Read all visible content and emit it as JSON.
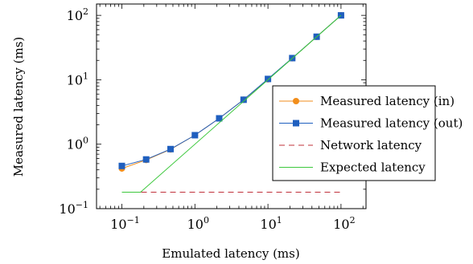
{
  "chart_data": {
    "type": "line",
    "x_scale": "log",
    "y_scale": "log",
    "xlabel": "Emulated latency (ms)",
    "ylabel": "Measured latency (ms)",
    "xlim": [
      0.045,
      220
    ],
    "ylim": [
      0.1,
      150
    ],
    "x_ticks": [
      {
        "value": 0.1,
        "base": "10",
        "exp": "−1"
      },
      {
        "value": 1,
        "base": "10",
        "exp": "0"
      },
      {
        "value": 10,
        "base": "10",
        "exp": "1"
      },
      {
        "value": 100,
        "base": "10",
        "exp": "2"
      }
    ],
    "y_ticks": [
      {
        "value": 0.1,
        "base": "10",
        "exp": "−1"
      },
      {
        "value": 1,
        "base": "10",
        "exp": "0"
      },
      {
        "value": 10,
        "base": "10",
        "exp": "1"
      },
      {
        "value": 100,
        "base": "10",
        "exp": "2"
      }
    ],
    "legend_position": "center-right",
    "series": [
      {
        "name": "Measured latency (in)",
        "color": "#f28e1c",
        "marker": "circle",
        "dash": "solid",
        "x": [
          0.1,
          0.215,
          0.464,
          1,
          2.15,
          4.64,
          10,
          21.5,
          46.4,
          100
        ],
        "y": [
          0.42,
          0.57,
          0.83,
          1.38,
          2.52,
          4.9,
          10.2,
          21.6,
          46.5,
          100
        ]
      },
      {
        "name": "Measured latency (out)",
        "color": "#1f5fbf",
        "marker": "square",
        "dash": "solid",
        "x": [
          0.1,
          0.215,
          0.464,
          1,
          2.15,
          4.64,
          10,
          21.5,
          46.4,
          100
        ],
        "y": [
          0.46,
          0.58,
          0.84,
          1.38,
          2.52,
          4.9,
          10.3,
          21.7,
          46.6,
          100
        ]
      },
      {
        "name": "Network latency",
        "color": "#c0303a",
        "marker": "none",
        "dash": "dashed",
        "x": [
          0.1,
          100
        ],
        "y": [
          0.18,
          0.18
        ]
      },
      {
        "name": "Expected latency",
        "color": "#3cc83c",
        "marker": "none",
        "dash": "solid",
        "x": [
          0.1,
          0.18,
          100
        ],
        "y": [
          0.18,
          0.18,
          100
        ]
      }
    ]
  }
}
